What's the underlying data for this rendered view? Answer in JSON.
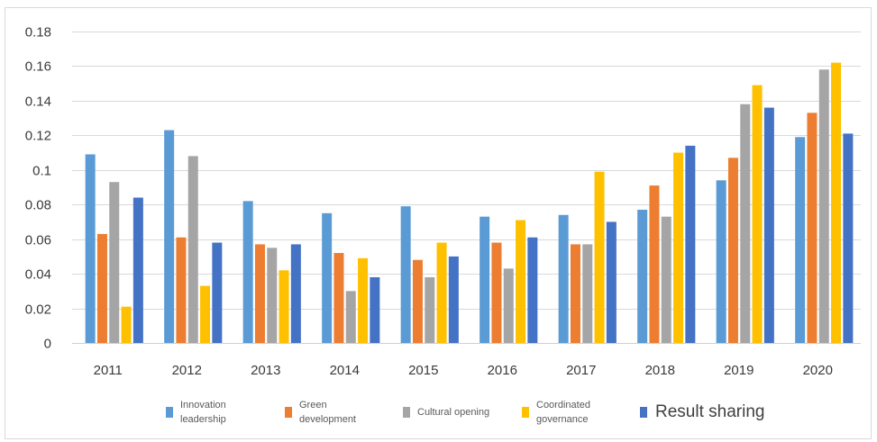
{
  "chart_data": {
    "type": "bar",
    "categories": [
      "2011",
      "2012",
      "2013",
      "2014",
      "2015",
      "2016",
      "2017",
      "2018",
      "2019",
      "2020"
    ],
    "ylim": [
      0,
      0.18
    ],
    "yticks": [
      "0",
      "0.02",
      "0.04",
      "0.06",
      "0.08",
      "0.1",
      "0.12",
      "0.14",
      "0.16",
      "0.18"
    ],
    "grid": true,
    "legend_position": "bottom",
    "series": [
      {
        "name": "Innovation leadership",
        "color": "#5B9BD5",
        "values": [
          0.109,
          0.123,
          0.082,
          0.075,
          0.079,
          0.073,
          0.074,
          0.077,
          0.094,
          0.119
        ]
      },
      {
        "name": "Green development",
        "color": "#ED7D31",
        "values": [
          0.063,
          0.061,
          0.057,
          0.052,
          0.048,
          0.058,
          0.057,
          0.091,
          0.107,
          0.133
        ]
      },
      {
        "name": "Cultural opening",
        "color": "#A5A5A5",
        "values": [
          0.093,
          0.108,
          0.055,
          0.03,
          0.038,
          0.043,
          0.057,
          0.073,
          0.138,
          0.158
        ]
      },
      {
        "name": "Coordinated governance",
        "color": "#FFC000",
        "values": [
          0.021,
          0.033,
          0.042,
          0.049,
          0.058,
          0.071,
          0.099,
          0.11,
          0.149,
          0.162
        ]
      },
      {
        "name": "Result sharing",
        "color": "#4472C4",
        "values": [
          0.084,
          0.058,
          0.057,
          0.038,
          0.05,
          0.061,
          0.07,
          0.114,
          0.136,
          0.121
        ]
      }
    ]
  }
}
